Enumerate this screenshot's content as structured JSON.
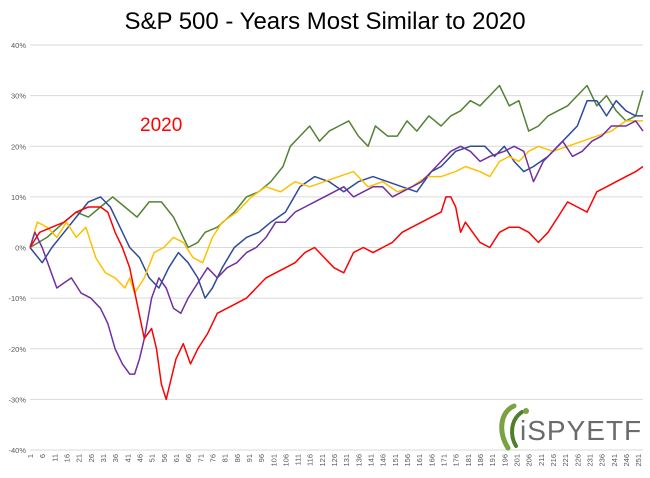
{
  "chart_data": {
    "type": "line",
    "title": "S&P 500 - Years Most Similar to 2020",
    "annotation": "2020",
    "xlabel": "",
    "ylabel": "",
    "xlim": [
      1,
      253
    ],
    "ylim": [
      -40,
      40
    ],
    "y_ticks": [
      -40,
      -30,
      -20,
      -10,
      0,
      10,
      20,
      30,
      40
    ],
    "y_tick_labels": [
      "-40%",
      "-30%",
      "-20%",
      "-10%",
      "0%",
      "10%",
      "20%",
      "30%",
      "40%"
    ],
    "x_ticks": [
      1,
      6,
      11,
      16,
      21,
      26,
      31,
      36,
      41,
      46,
      51,
      56,
      61,
      66,
      71,
      76,
      81,
      86,
      91,
      96,
      101,
      106,
      111,
      116,
      121,
      126,
      131,
      136,
      141,
      146,
      151,
      156,
      161,
      166,
      171,
      176,
      181,
      186,
      191,
      196,
      201,
      206,
      211,
      216,
      221,
      226,
      231,
      236,
      241,
      246,
      251
    ],
    "grid": true,
    "legend": "none",
    "series": [
      {
        "color": "#548235",
        "points": [
          [
            1,
            0
          ],
          [
            8,
            2
          ],
          [
            15,
            5
          ],
          [
            20,
            7
          ],
          [
            25,
            6
          ],
          [
            30,
            8
          ],
          [
            35,
            10
          ],
          [
            40,
            8
          ],
          [
            45,
            6
          ],
          [
            50,
            9
          ],
          [
            55,
            9
          ],
          [
            60,
            6
          ],
          [
            63,
            3
          ],
          [
            66,
            0
          ],
          [
            70,
            1
          ],
          [
            73,
            3
          ],
          [
            78,
            4
          ],
          [
            85,
            7
          ],
          [
            90,
            10
          ],
          [
            95,
            11
          ],
          [
            100,
            13
          ],
          [
            105,
            16
          ],
          [
            108,
            20
          ],
          [
            112,
            22
          ],
          [
            116,
            24
          ],
          [
            120,
            21
          ],
          [
            124,
            23
          ],
          [
            128,
            24
          ],
          [
            132,
            25
          ],
          [
            136,
            22
          ],
          [
            140,
            20
          ],
          [
            143,
            24
          ],
          [
            148,
            22
          ],
          [
            152,
            22
          ],
          [
            156,
            25
          ],
          [
            160,
            23
          ],
          [
            165,
            26
          ],
          [
            170,
            24
          ],
          [
            174,
            26
          ],
          [
            178,
            27
          ],
          [
            182,
            29
          ],
          [
            186,
            28
          ],
          [
            190,
            30
          ],
          [
            194,
            32
          ],
          [
            198,
            28
          ],
          [
            202,
            29
          ],
          [
            206,
            23
          ],
          [
            210,
            24
          ],
          [
            214,
            26
          ],
          [
            218,
            27
          ],
          [
            222,
            28
          ],
          [
            226,
            30
          ],
          [
            230,
            32
          ],
          [
            234,
            28
          ],
          [
            238,
            30
          ],
          [
            242,
            27
          ],
          [
            246,
            25
          ],
          [
            250,
            26
          ],
          [
            253,
            31
          ]
        ]
      },
      {
        "color": "#2e4b9b",
        "points": [
          [
            1,
            0
          ],
          [
            6,
            -3
          ],
          [
            10,
            0
          ],
          [
            15,
            3
          ],
          [
            20,
            6
          ],
          [
            25,
            9
          ],
          [
            30,
            10
          ],
          [
            34,
            8
          ],
          [
            38,
            4
          ],
          [
            42,
            0
          ],
          [
            46,
            -2
          ],
          [
            50,
            -6
          ],
          [
            54,
            -8
          ],
          [
            58,
            -4
          ],
          [
            62,
            -1
          ],
          [
            66,
            -3
          ],
          [
            70,
            -6
          ],
          [
            73,
            -10
          ],
          [
            76,
            -8
          ],
          [
            80,
            -4
          ],
          [
            85,
            0
          ],
          [
            90,
            2
          ],
          [
            95,
            3
          ],
          [
            100,
            5
          ],
          [
            106,
            7
          ],
          [
            112,
            12
          ],
          [
            118,
            14
          ],
          [
            124,
            13
          ],
          [
            130,
            11
          ],
          [
            136,
            13
          ],
          [
            142,
            14
          ],
          [
            148,
            13
          ],
          [
            154,
            12
          ],
          [
            160,
            11
          ],
          [
            166,
            15
          ],
          [
            170,
            16
          ],
          [
            176,
            19
          ],
          [
            182,
            20
          ],
          [
            188,
            20
          ],
          [
            192,
            18
          ],
          [
            196,
            20
          ],
          [
            200,
            17
          ],
          [
            204,
            15
          ],
          [
            208,
            16
          ],
          [
            214,
            18
          ],
          [
            220,
            21
          ],
          [
            226,
            24
          ],
          [
            230,
            29
          ],
          [
            234,
            29
          ],
          [
            238,
            26
          ],
          [
            242,
            29
          ],
          [
            246,
            27
          ],
          [
            250,
            26
          ],
          [
            253,
            26
          ]
        ]
      },
      {
        "color": "#ffc000",
        "points": [
          [
            1,
            0
          ],
          [
            4,
            5
          ],
          [
            8,
            4
          ],
          [
            12,
            2
          ],
          [
            16,
            5
          ],
          [
            20,
            2
          ],
          [
            24,
            4
          ],
          [
            28,
            -2
          ],
          [
            32,
            -5
          ],
          [
            36,
            -6
          ],
          [
            40,
            -8
          ],
          [
            42,
            -6
          ],
          [
            44,
            -9
          ],
          [
            48,
            -6
          ],
          [
            52,
            -1
          ],
          [
            56,
            0
          ],
          [
            60,
            2
          ],
          [
            64,
            1
          ],
          [
            68,
            -2
          ],
          [
            72,
            -3
          ],
          [
            76,
            2
          ],
          [
            80,
            5
          ],
          [
            86,
            7
          ],
          [
            92,
            10
          ],
          [
            98,
            12
          ],
          [
            104,
            11
          ],
          [
            110,
            13
          ],
          [
            116,
            12
          ],
          [
            122,
            13
          ],
          [
            128,
            14
          ],
          [
            134,
            15
          ],
          [
            140,
            12
          ],
          [
            146,
            13
          ],
          [
            152,
            11
          ],
          [
            158,
            12
          ],
          [
            164,
            14
          ],
          [
            170,
            14
          ],
          [
            176,
            15
          ],
          [
            180,
            16
          ],
          [
            186,
            15
          ],
          [
            190,
            14
          ],
          [
            194,
            17
          ],
          [
            198,
            18
          ],
          [
            202,
            17
          ],
          [
            206,
            19
          ],
          [
            210,
            20
          ],
          [
            216,
            19
          ],
          [
            222,
            20
          ],
          [
            228,
            21
          ],
          [
            234,
            22
          ],
          [
            240,
            23
          ],
          [
            246,
            25
          ],
          [
            250,
            25
          ],
          [
            253,
            25
          ]
        ]
      },
      {
        "color": "#7030a0",
        "points": [
          [
            1,
            0
          ],
          [
            3,
            3
          ],
          [
            6,
            0
          ],
          [
            9,
            -4
          ],
          [
            12,
            -8
          ],
          [
            15,
            -7
          ],
          [
            18,
            -6
          ],
          [
            22,
            -9
          ],
          [
            26,
            -10
          ],
          [
            30,
            -12
          ],
          [
            33,
            -15
          ],
          [
            36,
            -20
          ],
          [
            39,
            -23
          ],
          [
            42,
            -25
          ],
          [
            44,
            -25
          ],
          [
            46,
            -22
          ],
          [
            48,
            -18
          ],
          [
            51,
            -10
          ],
          [
            54,
            -6
          ],
          [
            57,
            -8
          ],
          [
            60,
            -12
          ],
          [
            63,
            -13
          ],
          [
            66,
            -10
          ],
          [
            70,
            -7
          ],
          [
            74,
            -4
          ],
          [
            78,
            -6
          ],
          [
            82,
            -4
          ],
          [
            86,
            -3
          ],
          [
            90,
            -1
          ],
          [
            94,
            0
          ],
          [
            98,
            2
          ],
          [
            102,
            5
          ],
          [
            106,
            5
          ],
          [
            110,
            7
          ],
          [
            114,
            8
          ],
          [
            118,
            9
          ],
          [
            122,
            10
          ],
          [
            126,
            11
          ],
          [
            130,
            12
          ],
          [
            134,
            10
          ],
          [
            138,
            11
          ],
          [
            142,
            12
          ],
          [
            146,
            12
          ],
          [
            150,
            10
          ],
          [
            154,
            11
          ],
          [
            158,
            12
          ],
          [
            162,
            13
          ],
          [
            166,
            15
          ],
          [
            170,
            17
          ],
          [
            174,
            19
          ],
          [
            178,
            20
          ],
          [
            182,
            19
          ],
          [
            186,
            17
          ],
          [
            190,
            18
          ],
          [
            196,
            19
          ],
          [
            200,
            20
          ],
          [
            204,
            19
          ],
          [
            208,
            13
          ],
          [
            212,
            17
          ],
          [
            216,
            19
          ],
          [
            220,
            21
          ],
          [
            224,
            18
          ],
          [
            228,
            19
          ],
          [
            232,
            21
          ],
          [
            236,
            22
          ],
          [
            240,
            24
          ],
          [
            246,
            24
          ],
          [
            250,
            25
          ],
          [
            253,
            23
          ]
        ]
      },
      {
        "color": "#ff0000",
        "points": [
          [
            1,
            0
          ],
          [
            5,
            3
          ],
          [
            10,
            4
          ],
          [
            15,
            5
          ],
          [
            20,
            7
          ],
          [
            25,
            8
          ],
          [
            30,
            8
          ],
          [
            33,
            7
          ],
          [
            36,
            3
          ],
          [
            39,
            0
          ],
          [
            42,
            -4
          ],
          [
            45,
            -11
          ],
          [
            48,
            -18
          ],
          [
            51,
            -16
          ],
          [
            53,
            -20
          ],
          [
            55,
            -27
          ],
          [
            57,
            -30
          ],
          [
            59,
            -26
          ],
          [
            61,
            -22
          ],
          [
            64,
            -19
          ],
          [
            67,
            -23
          ],
          [
            70,
            -20
          ],
          [
            74,
            -17
          ],
          [
            78,
            -13
          ],
          [
            82,
            -12
          ],
          [
            86,
            -11
          ],
          [
            90,
            -10
          ],
          [
            94,
            -8
          ],
          [
            98,
            -6
          ],
          [
            102,
            -5
          ],
          [
            106,
            -4
          ],
          [
            110,
            -3
          ],
          [
            114,
            -1
          ],
          [
            118,
            0
          ],
          [
            122,
            -2
          ],
          [
            126,
            -4
          ],
          [
            130,
            -5
          ],
          [
            134,
            -1
          ],
          [
            138,
            0
          ],
          [
            142,
            -1
          ],
          [
            146,
            0
          ],
          [
            150,
            1
          ],
          [
            154,
            3
          ],
          [
            158,
            4
          ],
          [
            162,
            5
          ],
          [
            166,
            6
          ],
          [
            170,
            7
          ],
          [
            172,
            10
          ],
          [
            174,
            10
          ],
          [
            176,
            8
          ],
          [
            178,
            3
          ],
          [
            180,
            5
          ],
          [
            183,
            3
          ],
          [
            186,
            1
          ],
          [
            190,
            0
          ],
          [
            194,
            3
          ],
          [
            198,
            4
          ],
          [
            202,
            4
          ],
          [
            206,
            3
          ],
          [
            210,
            1
          ],
          [
            214,
            3
          ],
          [
            218,
            6
          ],
          [
            222,
            9
          ],
          [
            226,
            8
          ],
          [
            230,
            7
          ],
          [
            234,
            11
          ],
          [
            238,
            12
          ],
          [
            242,
            13
          ],
          [
            246,
            14
          ],
          [
            250,
            15
          ],
          [
            253,
            16
          ]
        ]
      }
    ]
  },
  "logo": {
    "text_i": "i",
    "text_spy": "SPY",
    "text_etf": "ETF",
    "accent": "#7aa243",
    "accent2": "#4f7f2a"
  }
}
